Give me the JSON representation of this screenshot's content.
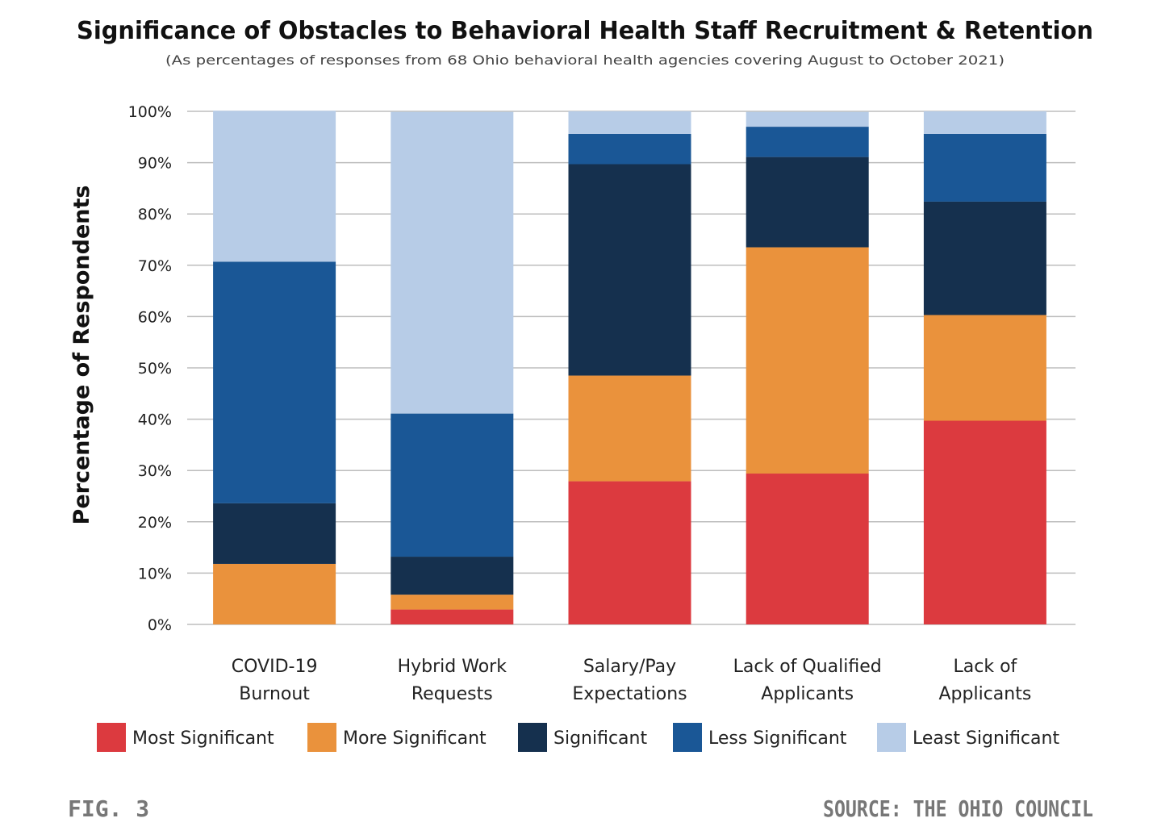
{
  "chart_data": {
    "type": "bar",
    "stacked": true,
    "title": "Significance of Obstacles to Behavioral Health Staff Recruitment & Retention",
    "subtitle": "(As percentages of responses from 68 Ohio behavioral health agencies covering August to October 2021)",
    "xlabel": "",
    "ylabel": "Percentage of Respondents",
    "ylim": [
      0,
      100
    ],
    "yticks": [
      "0%",
      "10%",
      "20%",
      "30%",
      "40%",
      "50%",
      "60%",
      "70%",
      "80%",
      "90%",
      "100%"
    ],
    "grid": true,
    "legend_placement": "bottom",
    "categories": [
      [
        "COVID-19",
        "Burnout"
      ],
      [
        "Hybrid Work",
        "Requests"
      ],
      [
        "Salary/Pay",
        "Expectations"
      ],
      [
        "Lack of Qualified",
        "Applicants"
      ],
      [
        "Lack of",
        "Applicants"
      ]
    ],
    "series": [
      {
        "name": "Most Significant",
        "color": "#DC3A3F",
        "values": [
          0,
          2.9,
          27.9,
          29.4,
          39.7
        ]
      },
      {
        "name": "More Significant",
        "color": "#EA923C",
        "values": [
          11.8,
          2.9,
          20.6,
          44.1,
          20.6
        ]
      },
      {
        "name": "Significant",
        "color": "#15304E",
        "values": [
          11.8,
          7.4,
          41.2,
          17.6,
          22.1
        ]
      },
      {
        "name": "Less Significant",
        "color": "#1A5796",
        "values": [
          47.1,
          27.9,
          5.9,
          5.9,
          13.2
        ]
      },
      {
        "name": "Least Significant",
        "color": "#B7CCE7",
        "values": [
          29.4,
          58.8,
          4.4,
          2.9,
          4.4
        ]
      }
    ]
  },
  "footer": {
    "figure": "FIG. 3",
    "source": "SOURCE: THE OHIO COUNCIL"
  }
}
